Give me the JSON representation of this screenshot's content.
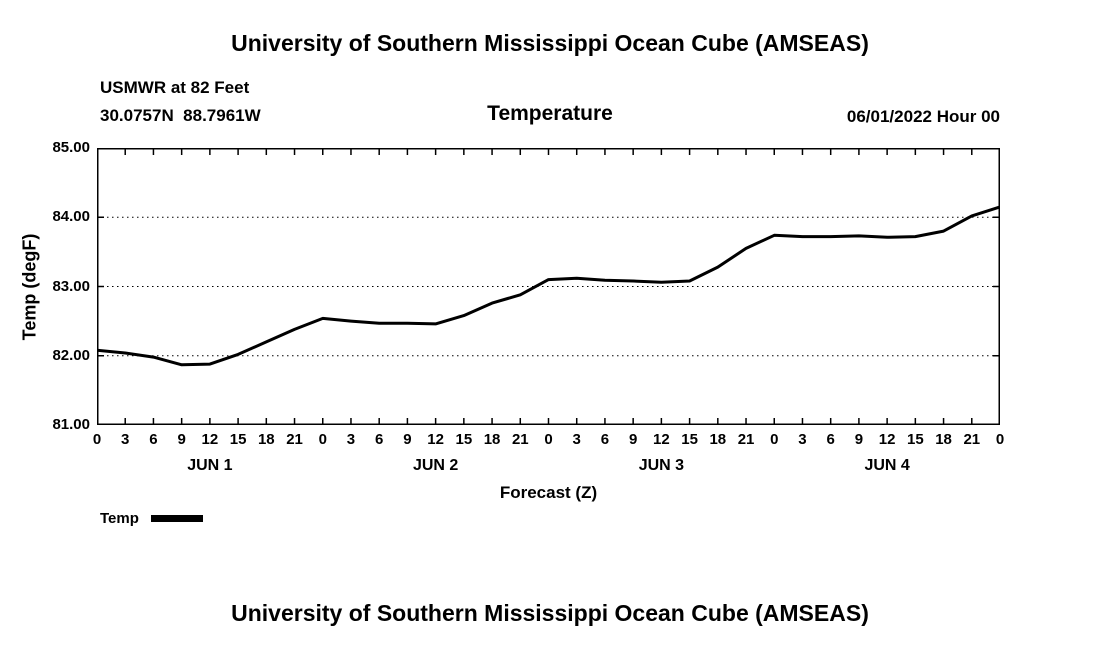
{
  "page": {
    "title_top": "University of Southern Mississippi Ocean Cube (AMSEAS)",
    "title_bottom": "University of Southern Mississippi Ocean Cube (AMSEAS)"
  },
  "header": {
    "station_line1": "USMWR at 82 Feet",
    "station_line2": "30.0757N  88.7961W",
    "subtitle": "Temperature",
    "datetime": "06/01/2022 Hour 00"
  },
  "chart_data": {
    "type": "line",
    "title": "Temperature",
    "xlabel": "Forecast (Z)",
    "ylabel": "Temp (degF)",
    "ylim": [
      81,
      85
    ],
    "xlim_hours": [
      0,
      96
    ],
    "y_ticks": [
      81,
      82,
      83,
      84,
      85
    ],
    "y_tick_labels": [
      "81.00",
      "82.00",
      "83.00",
      "84.00",
      "85.00"
    ],
    "x_tick_step_hours": 3,
    "x_tick_labels": [
      "0",
      "3",
      "6",
      "9",
      "12",
      "15",
      "18",
      "21",
      "0",
      "3",
      "6",
      "9",
      "12",
      "15",
      "18",
      "21",
      "0",
      "3",
      "6",
      "9",
      "12",
      "15",
      "18",
      "21",
      "0",
      "3",
      "6",
      "9",
      "12",
      "15",
      "18",
      "21",
      "0"
    ],
    "day_labels": [
      {
        "label": "JUN 1",
        "center_hour": 12
      },
      {
        "label": "JUN 2",
        "center_hour": 36
      },
      {
        "label": "JUN 3",
        "center_hour": 60
      },
      {
        "label": "JUN 4",
        "center_hour": 84
      }
    ],
    "grid": {
      "horizontal": "dashed",
      "vertical": "off",
      "color": "#000000"
    },
    "legend": [
      {
        "name": "Temp",
        "color": "#000000"
      }
    ],
    "series": [
      {
        "name": "Temp",
        "color": "#000000",
        "line_width": 3,
        "x_hours": [
          0,
          3,
          6,
          9,
          12,
          15,
          18,
          21,
          24,
          27,
          30,
          33,
          36,
          39,
          42,
          45,
          48,
          51,
          54,
          57,
          60,
          63,
          66,
          69,
          72,
          75,
          78,
          81,
          84,
          87,
          90,
          93,
          96
        ],
        "values": [
          82.08,
          82.04,
          81.98,
          81.87,
          81.88,
          82.02,
          82.2,
          82.38,
          82.54,
          82.5,
          82.47,
          82.47,
          82.46,
          82.58,
          82.76,
          82.88,
          83.1,
          83.12,
          83.09,
          83.08,
          83.06,
          83.08,
          83.28,
          83.55,
          83.74,
          83.72,
          83.72,
          83.73,
          83.71,
          83.72,
          83.8,
          84.02,
          84.15
        ]
      }
    ]
  }
}
